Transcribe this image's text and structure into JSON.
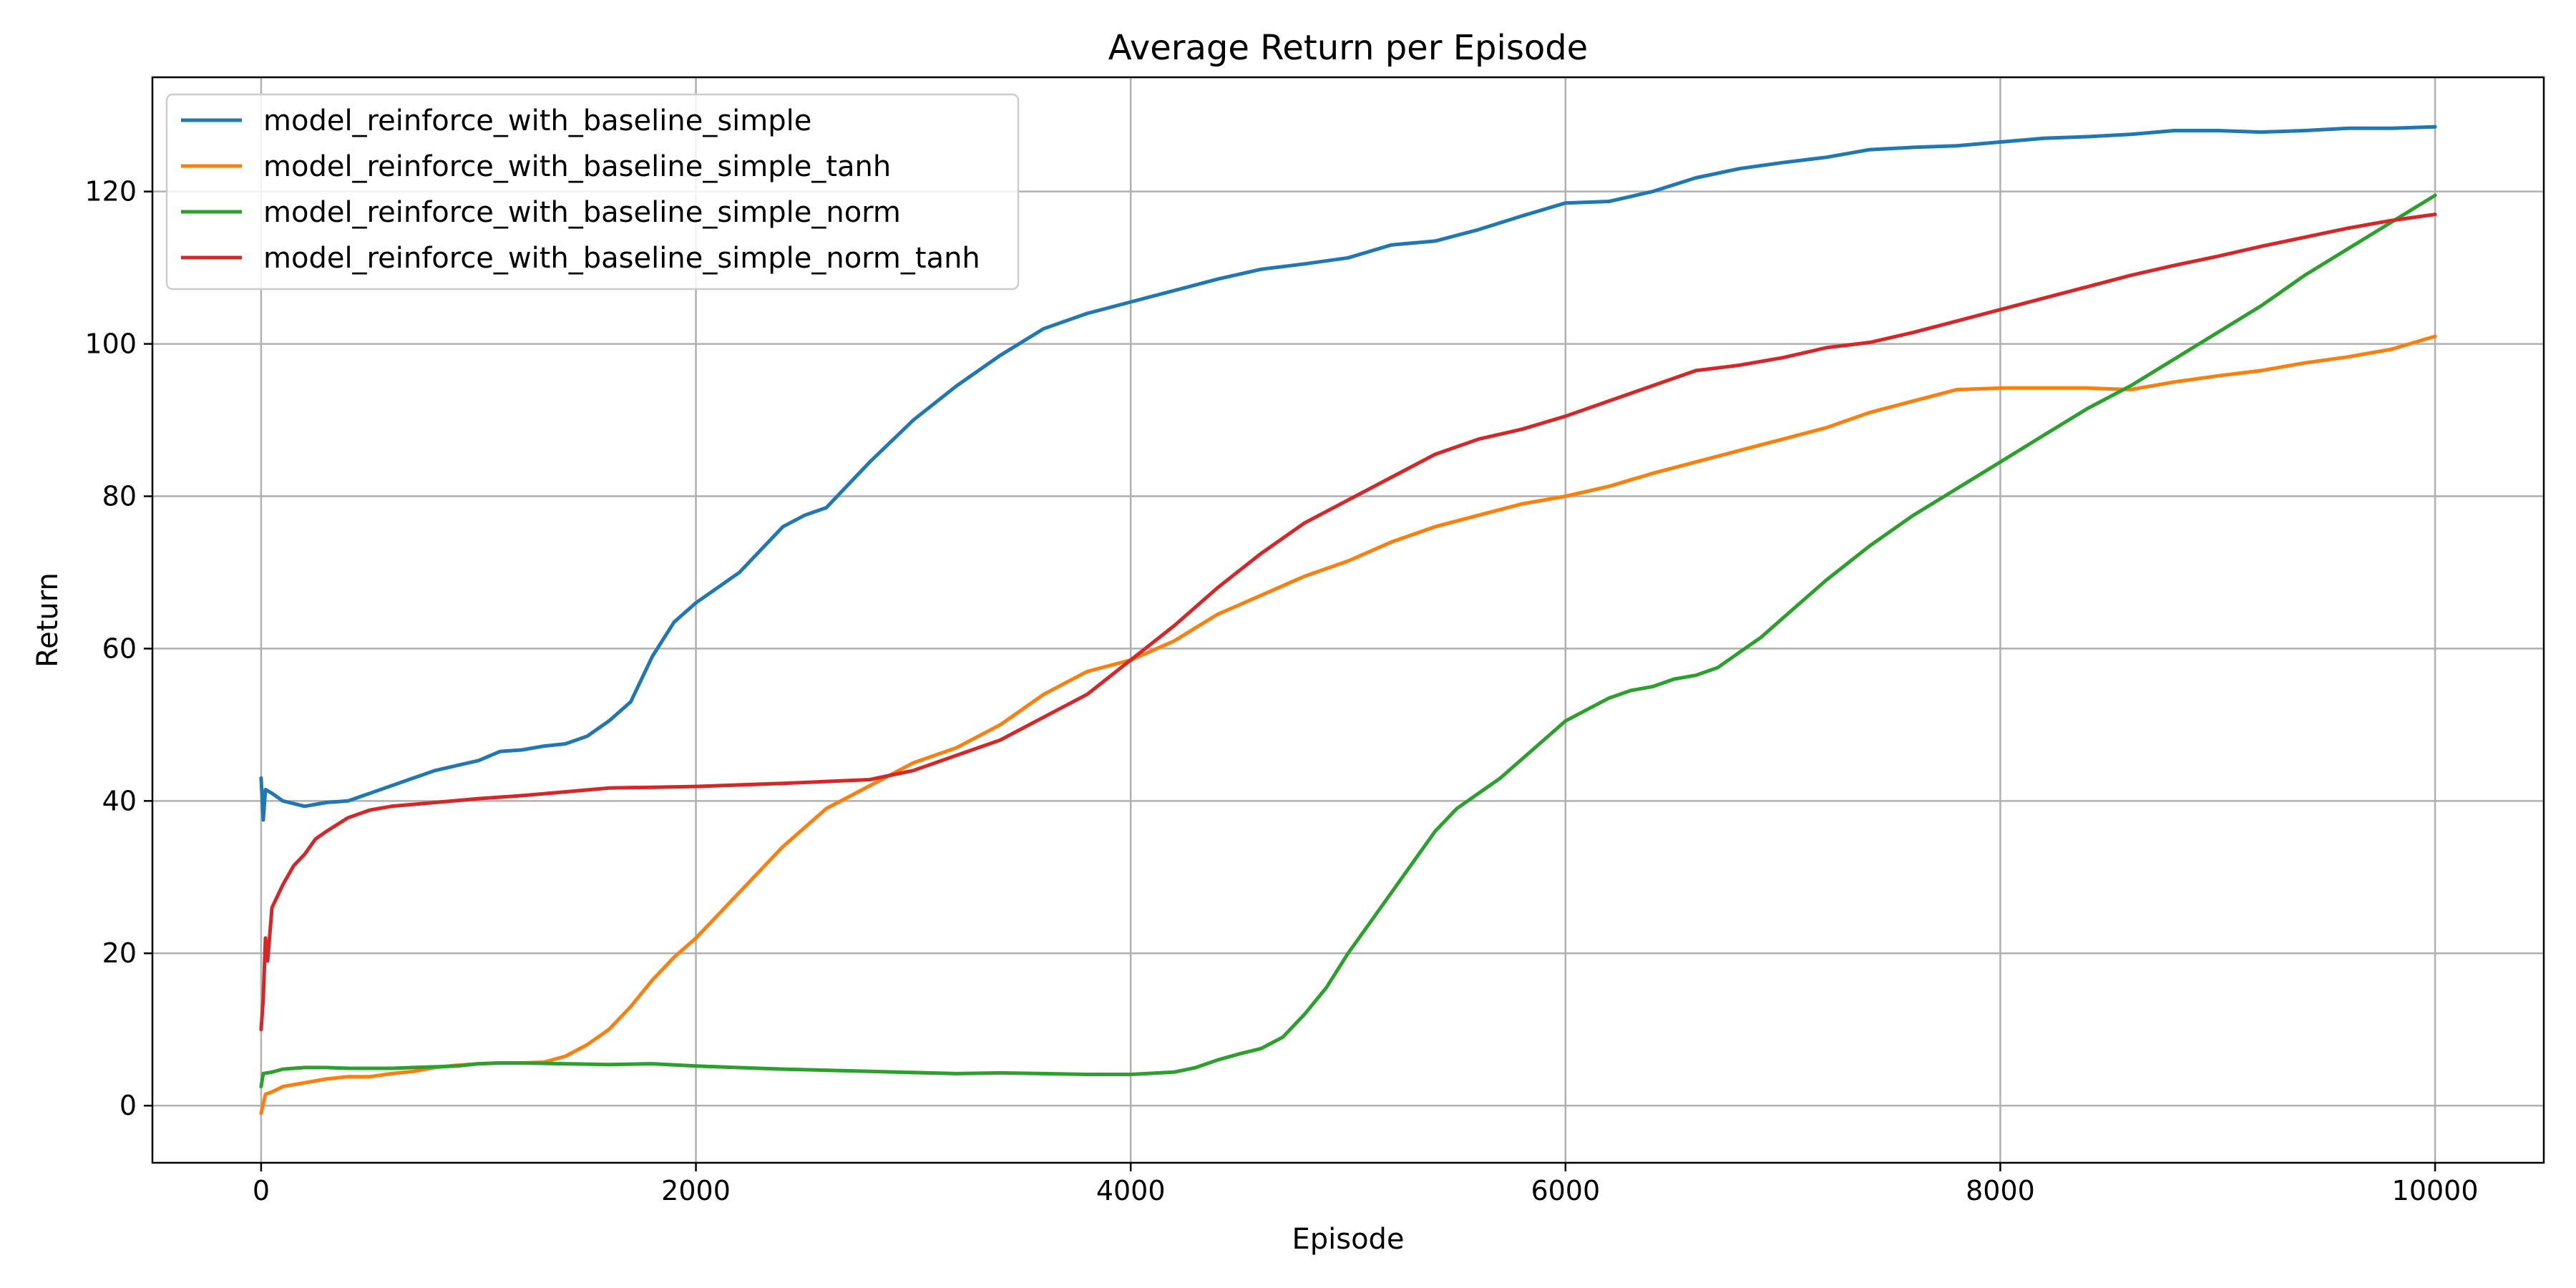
{
  "chart_data": {
    "type": "line",
    "title": "Average Return per Episode",
    "xlabel": "Episode",
    "ylabel": "Return",
    "xlim": [
      -500,
      10500
    ],
    "ylim": [
      -7.5,
      135
    ],
    "xticks": [
      0,
      2000,
      4000,
      6000,
      8000,
      10000
    ],
    "yticks": [
      0,
      20,
      40,
      60,
      80,
      100,
      120
    ],
    "grid": true,
    "legend_position": "upper-left",
    "series": [
      {
        "name": "model_reinforce_with_baseline_simple",
        "color": "#1f77b4",
        "points": [
          [
            0,
            43
          ],
          [
            10,
            37.5
          ],
          [
            20,
            41.5
          ],
          [
            50,
            41
          ],
          [
            100,
            40
          ],
          [
            200,
            39.3
          ],
          [
            300,
            39.8
          ],
          [
            400,
            40
          ],
          [
            500,
            41
          ],
          [
            700,
            43
          ],
          [
            800,
            44
          ],
          [
            1000,
            45.3
          ],
          [
            1100,
            46.5
          ],
          [
            1200,
            46.7
          ],
          [
            1300,
            47.2
          ],
          [
            1400,
            47.5
          ],
          [
            1500,
            48.5
          ],
          [
            1600,
            50.5
          ],
          [
            1700,
            53
          ],
          [
            1800,
            59
          ],
          [
            1900,
            63.5
          ],
          [
            2000,
            66
          ],
          [
            2200,
            70
          ],
          [
            2400,
            76
          ],
          [
            2500,
            77.5
          ],
          [
            2600,
            78.5
          ],
          [
            2700,
            81.5
          ],
          [
            2800,
            84.5
          ],
          [
            3000,
            90
          ],
          [
            3200,
            94.5
          ],
          [
            3400,
            98.5
          ],
          [
            3600,
            102
          ],
          [
            3800,
            104
          ],
          [
            4000,
            105.5
          ],
          [
            4200,
            107
          ],
          [
            4400,
            108.5
          ],
          [
            4600,
            109.8
          ],
          [
            4800,
            110.5
          ],
          [
            5000,
            111.3
          ],
          [
            5200,
            113
          ],
          [
            5400,
            113.5
          ],
          [
            5600,
            115
          ],
          [
            5800,
            116.8
          ],
          [
            6000,
            118.5
          ],
          [
            6200,
            118.7
          ],
          [
            6400,
            120
          ],
          [
            6600,
            121.8
          ],
          [
            6800,
            123
          ],
          [
            7000,
            123.8
          ],
          [
            7200,
            124.5
          ],
          [
            7400,
            125.5
          ],
          [
            7600,
            125.8
          ],
          [
            7800,
            126
          ],
          [
            8000,
            126.5
          ],
          [
            8200,
            127
          ],
          [
            8400,
            127.2
          ],
          [
            8600,
            127.5
          ],
          [
            8800,
            128
          ],
          [
            9000,
            128
          ],
          [
            9200,
            127.8
          ],
          [
            9400,
            128
          ],
          [
            9600,
            128.3
          ],
          [
            9800,
            128.3
          ],
          [
            10000,
            128.5
          ]
        ]
      },
      {
        "name": "model_reinforce_with_baseline_simple_tanh",
        "color": "#ff7f0e",
        "points": [
          [
            0,
            -1
          ],
          [
            20,
            1.5
          ],
          [
            50,
            1.8
          ],
          [
            100,
            2.5
          ],
          [
            200,
            3
          ],
          [
            300,
            3.5
          ],
          [
            400,
            3.8
          ],
          [
            500,
            3.8
          ],
          [
            600,
            4.2
          ],
          [
            700,
            4.5
          ],
          [
            800,
            5
          ],
          [
            900,
            5.3
          ],
          [
            1000,
            5.5
          ],
          [
            1100,
            5.6
          ],
          [
            1200,
            5.6
          ],
          [
            1300,
            5.7
          ],
          [
            1400,
            6.5
          ],
          [
            1500,
            8
          ],
          [
            1600,
            10
          ],
          [
            1700,
            13
          ],
          [
            1800,
            16.5
          ],
          [
            1900,
            19.5
          ],
          [
            2000,
            22
          ],
          [
            2200,
            28
          ],
          [
            2400,
            34
          ],
          [
            2600,
            39
          ],
          [
            2800,
            42
          ],
          [
            3000,
            45
          ],
          [
            3200,
            47
          ],
          [
            3400,
            50
          ],
          [
            3600,
            54
          ],
          [
            3800,
            57
          ],
          [
            4000,
            58.5
          ],
          [
            4200,
            61
          ],
          [
            4400,
            64.5
          ],
          [
            4600,
            67
          ],
          [
            4800,
            69.5
          ],
          [
            5000,
            71.5
          ],
          [
            5200,
            74
          ],
          [
            5400,
            76
          ],
          [
            5600,
            77.5
          ],
          [
            5800,
            79
          ],
          [
            6000,
            80
          ],
          [
            6200,
            81.3
          ],
          [
            6400,
            83
          ],
          [
            6600,
            84.5
          ],
          [
            6800,
            86
          ],
          [
            7000,
            87.5
          ],
          [
            7200,
            89
          ],
          [
            7400,
            91
          ],
          [
            7600,
            92.5
          ],
          [
            7800,
            94
          ],
          [
            8000,
            94.2
          ],
          [
            8200,
            94.2
          ],
          [
            8400,
            94.2
          ],
          [
            8600,
            94
          ],
          [
            8800,
            95
          ],
          [
            9000,
            95.8
          ],
          [
            9200,
            96.5
          ],
          [
            9400,
            97.5
          ],
          [
            9600,
            98.3
          ],
          [
            9800,
            99.3
          ],
          [
            10000,
            101
          ]
        ]
      },
      {
        "name": "model_reinforce_with_baseline_simple_norm",
        "color": "#2ca02c",
        "points": [
          [
            0,
            2.5
          ],
          [
            10,
            4.2
          ],
          [
            50,
            4.4
          ],
          [
            100,
            4.8
          ],
          [
            200,
            5
          ],
          [
            300,
            5
          ],
          [
            400,
            4.9
          ],
          [
            500,
            4.9
          ],
          [
            600,
            4.9
          ],
          [
            700,
            5
          ],
          [
            800,
            5.1
          ],
          [
            900,
            5.2
          ],
          [
            1000,
            5.5
          ],
          [
            1100,
            5.6
          ],
          [
            1200,
            5.6
          ],
          [
            1400,
            5.5
          ],
          [
            1600,
            5.4
          ],
          [
            1800,
            5.5
          ],
          [
            2000,
            5.2
          ],
          [
            2400,
            4.8
          ],
          [
            2800,
            4.5
          ],
          [
            3200,
            4.2
          ],
          [
            3400,
            4.3
          ],
          [
            3600,
            4.2
          ],
          [
            3800,
            4.1
          ],
          [
            4000,
            4.1
          ],
          [
            4200,
            4.4
          ],
          [
            4300,
            5
          ],
          [
            4400,
            6
          ],
          [
            4500,
            6.8
          ],
          [
            4600,
            7.5
          ],
          [
            4700,
            9
          ],
          [
            4800,
            12
          ],
          [
            4900,
            15.5
          ],
          [
            5000,
            20
          ],
          [
            5100,
            24
          ],
          [
            5200,
            28
          ],
          [
            5300,
            32
          ],
          [
            5400,
            36
          ],
          [
            5500,
            39
          ],
          [
            5600,
            41
          ],
          [
            5700,
            43
          ],
          [
            5800,
            45.5
          ],
          [
            5900,
            48
          ],
          [
            6000,
            50.5
          ],
          [
            6100,
            52
          ],
          [
            6200,
            53.5
          ],
          [
            6300,
            54.5
          ],
          [
            6400,
            55
          ],
          [
            6500,
            56
          ],
          [
            6600,
            56.5
          ],
          [
            6700,
            57.5
          ],
          [
            6800,
            59.5
          ],
          [
            6900,
            61.5
          ],
          [
            7000,
            64
          ],
          [
            7200,
            69
          ],
          [
            7400,
            73.5
          ],
          [
            7600,
            77.5
          ],
          [
            7800,
            81
          ],
          [
            8000,
            84.5
          ],
          [
            8200,
            88
          ],
          [
            8400,
            91.5
          ],
          [
            8600,
            94.5
          ],
          [
            8800,
            98
          ],
          [
            9000,
            101.5
          ],
          [
            9200,
            105
          ],
          [
            9400,
            109
          ],
          [
            9600,
            112.5
          ],
          [
            9800,
            116
          ],
          [
            10000,
            119.5
          ]
        ]
      },
      {
        "name": "model_reinforce_with_baseline_simple_norm_tanh",
        "color": "#d62728",
        "points": [
          [
            0,
            10
          ],
          [
            10,
            14
          ],
          [
            20,
            22
          ],
          [
            30,
            19
          ],
          [
            50,
            26
          ],
          [
            100,
            29
          ],
          [
            150,
            31.5
          ],
          [
            200,
            33
          ],
          [
            250,
            35
          ],
          [
            300,
            36
          ],
          [
            400,
            37.8
          ],
          [
            500,
            38.8
          ],
          [
            600,
            39.3
          ],
          [
            800,
            39.8
          ],
          [
            1000,
            40.3
          ],
          [
            1200,
            40.7
          ],
          [
            1400,
            41.2
          ],
          [
            1600,
            41.7
          ],
          [
            1800,
            41.8
          ],
          [
            2000,
            41.9
          ],
          [
            2400,
            42.3
          ],
          [
            2800,
            42.8
          ],
          [
            3000,
            44
          ],
          [
            3200,
            46
          ],
          [
            3400,
            48
          ],
          [
            3600,
            51
          ],
          [
            3800,
            54
          ],
          [
            4000,
            58.5
          ],
          [
            4200,
            63
          ],
          [
            4400,
            68
          ],
          [
            4600,
            72.5
          ],
          [
            4800,
            76.5
          ],
          [
            5000,
            79.5
          ],
          [
            5200,
            82.5
          ],
          [
            5400,
            85.5
          ],
          [
            5600,
            87.5
          ],
          [
            5800,
            88.8
          ],
          [
            6000,
            90.5
          ],
          [
            6200,
            92.5
          ],
          [
            6400,
            94.5
          ],
          [
            6600,
            96.5
          ],
          [
            6800,
            97.2
          ],
          [
            7000,
            98.2
          ],
          [
            7200,
            99.5
          ],
          [
            7400,
            100.2
          ],
          [
            7600,
            101.5
          ],
          [
            7800,
            103
          ],
          [
            8000,
            104.5
          ],
          [
            8200,
            106
          ],
          [
            8400,
            107.5
          ],
          [
            8600,
            109
          ],
          [
            8800,
            110.3
          ],
          [
            9000,
            111.5
          ],
          [
            9200,
            112.8
          ],
          [
            9400,
            114
          ],
          [
            9600,
            115.2
          ],
          [
            9800,
            116.2
          ],
          [
            10000,
            117
          ]
        ]
      }
    ]
  }
}
